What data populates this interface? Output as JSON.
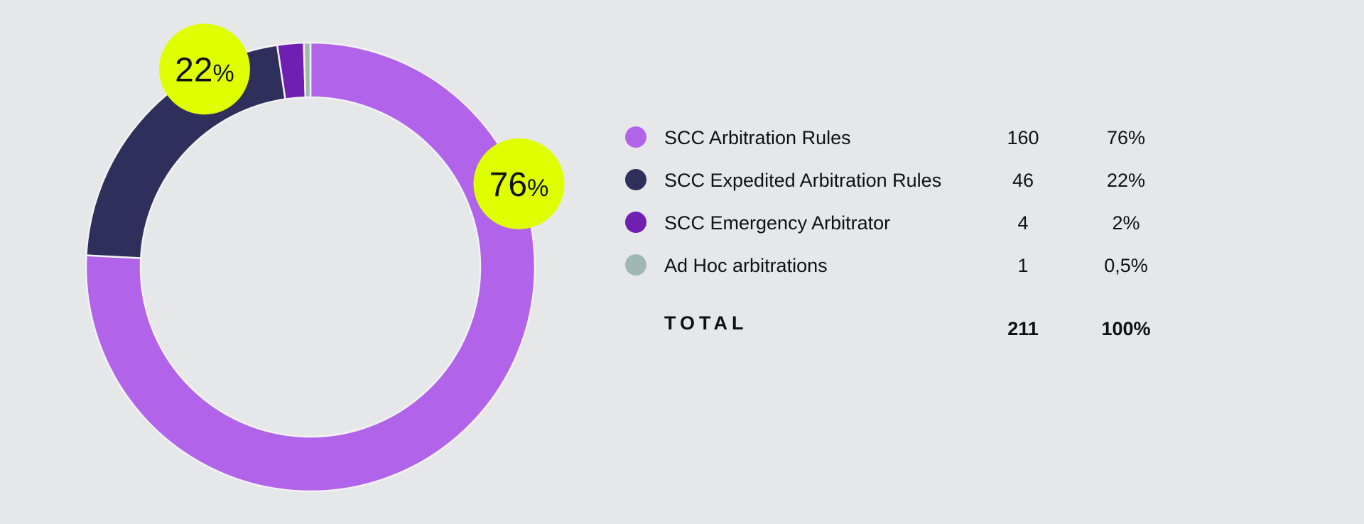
{
  "chart_data": {
    "type": "pie",
    "categories": [
      "SCC Arbitration Rules",
      "SCC Expedited Arbitration Rules",
      "SCC Emergency Arbitrator",
      "Ad Hoc arbitrations"
    ],
    "values": [
      160,
      46,
      4,
      1
    ],
    "percent_labels": [
      "76%",
      "22%",
      "2%",
      "0,5%"
    ],
    "colors": [
      "#b164ea",
      "#2f2f5b",
      "#6f1fb1",
      "#9fb8b2"
    ],
    "callouts": [
      {
        "category": "SCC Expedited Arbitration Rules",
        "number": "22",
        "unit": "%"
      },
      {
        "category": "SCC Arbitration Rules",
        "number": "76",
        "unit": "%"
      }
    ],
    "callout_color": "#dfff00",
    "total_label": "TOTAL",
    "total_value": "211",
    "total_percent": "100%"
  },
  "legend": [
    {
      "label": "SCC Arbitration Rules",
      "count": "160",
      "percent": "76%"
    },
    {
      "label": "SCC Expedited Arbitration Rules",
      "count": "46",
      "percent": "22%"
    },
    {
      "label": "SCC Emergency Arbitrator",
      "count": "4",
      "percent": "2%"
    },
    {
      "label": "Ad Hoc arbitrations",
      "count": "1",
      "percent": "0,5%"
    }
  ]
}
